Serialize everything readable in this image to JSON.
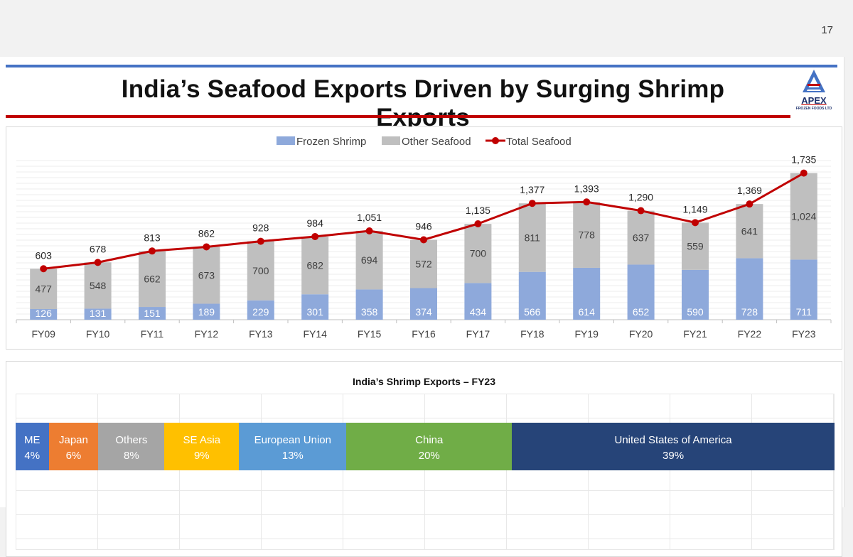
{
  "page_number": "17",
  "title": "India’s Seafood Exports Driven by Surging Shrimp Exports",
  "logo": {
    "word": "APEX",
    "sub": "FROZEN FOODS LTD"
  },
  "colors": {
    "frozen_shrimp": "#8ea9db",
    "other_seafood": "#bfbfbf",
    "total_line": "#c00000",
    "me": "#4472c4",
    "japan": "#ed7d31",
    "others": "#a5a5a5",
    "se_asia": "#ffc000",
    "eu": "#5b9bd5",
    "china": "#70ad47",
    "usa": "#264478"
  },
  "chart_data": [
    {
      "type": "bar",
      "stacked": true,
      "title": "",
      "xlabel": "",
      "ylabel": "",
      "ylim": [
        0,
        1900
      ],
      "grid": true,
      "legend_position": "top-center",
      "categories": [
        "FY09",
        "FY10",
        "FY11",
        "FY12",
        "FY13",
        "FY14",
        "FY15",
        "FY16",
        "FY17",
        "FY18",
        "FY19",
        "FY20",
        "FY21",
        "FY22",
        "FY23"
      ],
      "series": [
        {
          "name": "Frozen Shrimp",
          "kind": "bar",
          "values": [
            126,
            131,
            151,
            189,
            229,
            301,
            358,
            374,
            434,
            566,
            614,
            652,
            590,
            728,
            711
          ]
        },
        {
          "name": "Other Seafood",
          "kind": "bar",
          "values": [
            477,
            548,
            662,
            673,
            700,
            682,
            694,
            572,
            700,
            811,
            778,
            637,
            559,
            641,
            1024
          ]
        },
        {
          "name": "Total Seafood",
          "kind": "line",
          "values": [
            603,
            678,
            813,
            862,
            928,
            984,
            1051,
            946,
            1135,
            1377,
            1393,
            1290,
            1149,
            1369,
            1735
          ],
          "labels": [
            "603",
            "678",
            "813",
            "862",
            "928",
            "984",
            "1,051",
            "946",
            "1,135",
            "1,377",
            "1,393",
            "1,290",
            "1,149",
            "1,369",
            "1,735"
          ]
        }
      ],
      "other_labels": [
        "477",
        "548",
        "662",
        "673",
        "700",
        "682",
        "694",
        "572",
        "700",
        "811",
        "778",
        "637",
        "559",
        "641",
        "1,024"
      ]
    },
    {
      "type": "bar",
      "stacked": true,
      "orientation": "horizontal-100%",
      "title": "India’s Shrimp Exports – FY23",
      "categories": [
        "ME",
        "Japan",
        "Others",
        "SE Asia",
        "European Union",
        "China",
        "United States of America"
      ],
      "values": [
        4,
        6,
        8,
        9,
        13,
        20,
        39
      ],
      "labels": [
        "4%",
        "6%",
        "8%",
        "9%",
        "13%",
        "20%",
        "39%"
      ]
    }
  ]
}
